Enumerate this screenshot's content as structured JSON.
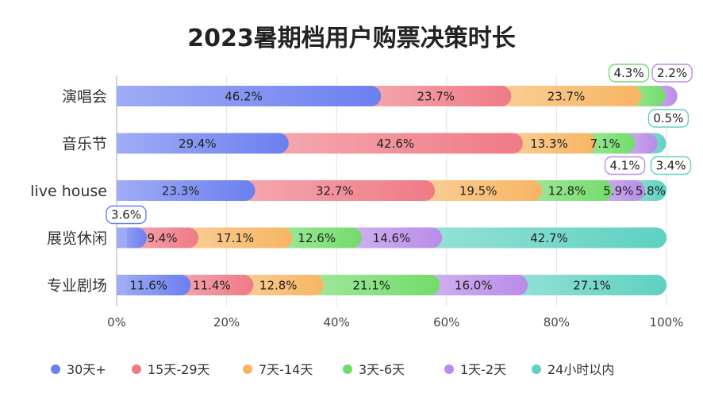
{
  "chart_data": {
    "type": "bar",
    "orientation": "horizontal",
    "stacked": true,
    "title": "2023暑期档用户购票决策时长",
    "categories": [
      "演唱会",
      "音乐节",
      "live house",
      "展览休闲",
      "专业剧场"
    ],
    "series": [
      {
        "name": "30天+",
        "color": "#6b7ff0",
        "values": [
          46.2,
          29.4,
          23.3,
          3.6,
          11.6
        ]
      },
      {
        "name": "15天-29天",
        "color": "#ef7a86",
        "values": [
          23.7,
          42.6,
          32.7,
          9.4,
          11.4
        ]
      },
      {
        "name": "7天-14天",
        "color": "#f7b562",
        "values": [
          23.7,
          13.3,
          19.5,
          17.1,
          12.8
        ]
      },
      {
        "name": "3天-6天",
        "color": "#72dc6a",
        "values": [
          4.3,
          7.1,
          12.8,
          12.6,
          21.1
        ]
      },
      {
        "name": "1天-2天",
        "color": "#b98ce8",
        "values": [
          2.2,
          4.1,
          5.9,
          14.6,
          16.0
        ]
      },
      {
        "name": "24小时以内",
        "color": "#5ed1c1",
        "values": [
          0.5,
          3.4,
          5.8,
          42.7,
          27.1
        ]
      }
    ],
    "value_labels": [
      [
        "46.2%",
        "23.7%",
        "23.7%",
        "4.3%",
        "2.2%",
        "0.5%"
      ],
      [
        "29.4%",
        "42.6%",
        "13.3%",
        "7.1%",
        "4.1%",
        "3.4%"
      ],
      [
        "23.3%",
        "32.7%",
        "19.5%",
        "12.8%",
        "5.9%",
        "5.8%"
      ],
      [
        "3.6%",
        "9.4%",
        "17.1%",
        "12.6%",
        "14.6%",
        "42.7%"
      ],
      [
        "11.6%",
        "11.4%",
        "12.8%",
        "21.1%",
        "16.0%",
        "27.1%"
      ]
    ],
    "x_ticks": [
      "0%",
      "20%",
      "40%",
      "60%",
      "80%",
      "100%"
    ],
    "xlim": [
      0,
      100
    ],
    "grid": true,
    "legend_position": "bottom"
  }
}
